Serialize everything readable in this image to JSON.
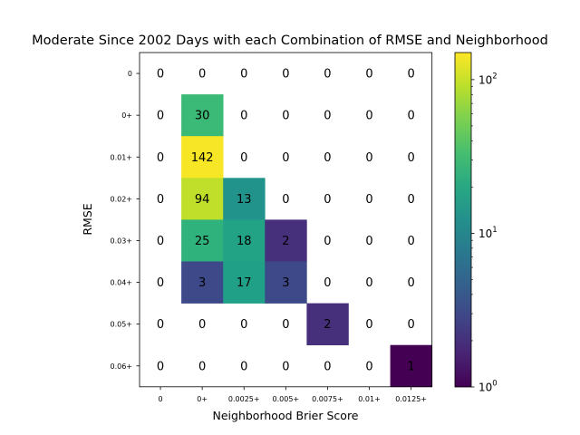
{
  "chart_data": {
    "type": "heatmap",
    "title": "Moderate Since 2002 Days with each Combination of RMSE and Neighborhood",
    "xlabel": "Neighborhood Brier Score",
    "ylabel": "RMSE",
    "x_categories": [
      "0",
      "0+",
      "0.0025+",
      "0.005+",
      "0.0075+",
      "0.01+",
      "0.0125+"
    ],
    "y_categories": [
      "0",
      "0+",
      "0.01+",
      "0.02+",
      "0.03+",
      "0.04+",
      "0.05+",
      "0.06+"
    ],
    "values": [
      [
        0,
        0,
        0,
        0,
        0,
        0,
        0
      ],
      [
        0,
        30,
        0,
        0,
        0,
        0,
        0
      ],
      [
        0,
        142,
        0,
        0,
        0,
        0,
        0
      ],
      [
        0,
        94,
        13,
        0,
        0,
        0,
        0
      ],
      [
        0,
        25,
        18,
        2,
        0,
        0,
        0
      ],
      [
        0,
        3,
        17,
        3,
        0,
        0,
        0
      ],
      [
        0,
        0,
        0,
        0,
        2,
        0,
        0
      ],
      [
        0,
        0,
        0,
        0,
        0,
        0,
        1
      ]
    ],
    "colorscale": "viridis",
    "color_scale_type": "log",
    "colorbar_range": [
      1,
      150
    ],
    "colorbar_ticks": [
      {
        "value": 1,
        "base": "10",
        "exp": "0"
      },
      {
        "value": 10,
        "base": "10",
        "exp": "1"
      },
      {
        "value": 100,
        "base": "10",
        "exp": "2"
      }
    ],
    "zero_cells": "blank",
    "grid": false
  }
}
